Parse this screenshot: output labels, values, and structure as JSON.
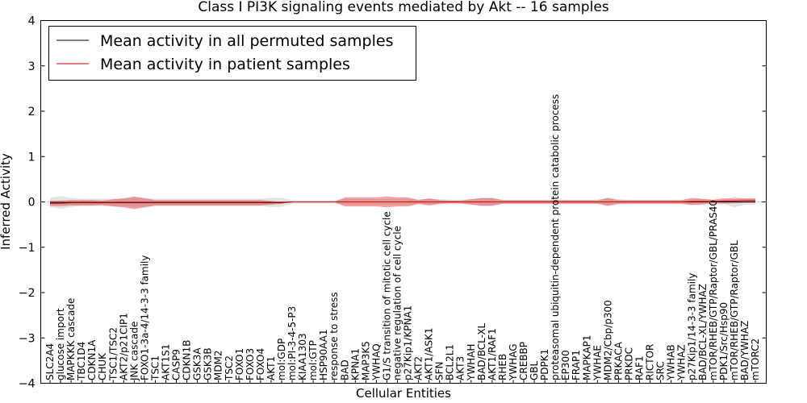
{
  "chart_data": {
    "type": "line",
    "title": "Class I PI3K signaling events mediated by Akt -- 16 samples",
    "xlabel": "Cellular Entities",
    "ylabel": "Inferred Activity",
    "ylim": [
      -4,
      4
    ],
    "yticks": [
      "4",
      "3",
      "2",
      "1",
      "0",
      "−1",
      "−2",
      "−3",
      "−4"
    ],
    "ytick_values": [
      4,
      3,
      2,
      1,
      0,
      -1,
      -2,
      -3,
      -4
    ],
    "legend": {
      "placement": "top-left",
      "entries": [
        {
          "label": "Mean activity in all permuted samples",
          "color": "#000000"
        },
        {
          "label": "Mean activity in patient samples",
          "color": "#cc0000"
        }
      ]
    },
    "categories": [
      "SLC2A4",
      "glucose import",
      "MAPKKK cascade",
      "TBC1D4",
      "CDKN1A",
      "CHUK",
      "TSC1/TSC2",
      "AKT2/p21CIP1",
      "JNK cascade",
      "FOXO1-3a-4/14-3-3 family",
      "TSC1",
      "AKT1S1",
      "CASP9",
      "CDKN1B",
      "GSK3A",
      "GSK3B",
      "MDM2",
      "TSC2",
      "FOXO1",
      "FOXO3",
      "FOXO4",
      "AKT1",
      "mol:GDP",
      "mol:PI-3-4-5-P3",
      "KIAA1303",
      "mol:GTP",
      "HSP90AA1",
      "response to stress",
      "BAD",
      "KPNA1",
      "MAP3K5",
      "YWHAQ",
      "G1/S transition of mitotic cell cycle",
      "negative regulation of cell cycle",
      "p27Kip1/KPNA1",
      "AKT2",
      "AKT1/ASK1",
      "SFN",
      "BCL2L1",
      "AKT3",
      "YWHAH",
      "BAD/BCL-XL",
      "AKT1/RAF1",
      "RHEB",
      "YWHAG",
      "CREBBP",
      "GBL",
      "PDPK1",
      "proteasomal ubiquitin-dependent protein catabolic process",
      "EP300",
      "FRAP1",
      "MAPKAP1",
      "YWHAE",
      "MDM2/Cbp/p300",
      "PRKACA",
      "PRKDC",
      "RAF1",
      "RICTOR",
      "SRC",
      "YWHAB",
      "YWHAZ",
      "p27Kip1/14-3-3 family",
      "BAD/BCL-XL/YWHAZ",
      "mTOR/RHEB/GTP/Raptor/GBL/PRAS40",
      "PDK1/Src/Hsp90",
      "mTOR/RHEB/GTP/Raptor/GBL",
      "BAD/YWHAZ",
      "mTORC2"
    ],
    "series": [
      {
        "name": "Mean activity in all permuted samples",
        "color": "#000000",
        "values": [
          -0.01,
          -0.01,
          -0.01,
          -0.01,
          -0.01,
          -0.01,
          -0.01,
          -0.01,
          -0.01,
          -0.01,
          -0.01,
          -0.01,
          -0.01,
          -0.01,
          -0.01,
          -0.01,
          -0.01,
          -0.01,
          -0.01,
          -0.01,
          -0.01,
          -0.01,
          -0.01,
          0.0,
          0.0,
          0.0,
          0.0,
          0.0,
          0.0,
          0.0,
          0.0,
          0.0,
          0.0,
          0.0,
          0.0,
          0.0,
          0.0,
          0.0,
          0.0,
          0.0,
          0.0,
          0.0,
          0.0,
          0.0,
          0.0,
          0.0,
          0.0,
          0.0,
          0.0,
          0.0,
          0.0,
          0.0,
          0.0,
          0.0,
          0.0,
          0.0,
          0.0,
          0.0,
          0.0,
          0.0,
          0.0,
          0.0,
          0.0,
          0.0,
          0.0,
          0.0,
          0.0,
          0.0
        ],
        "spread": [
          0.1,
          0.14,
          0.1,
          0.08,
          0.08,
          0.08,
          0.08,
          0.08,
          0.1,
          0.1,
          0.08,
          0.08,
          0.08,
          0.08,
          0.08,
          0.08,
          0.08,
          0.08,
          0.08,
          0.08,
          0.08,
          0.1,
          0.1,
          0.04,
          0.04,
          0.04,
          0.04,
          0.04,
          0.06,
          0.06,
          0.06,
          0.06,
          0.06,
          0.06,
          0.06,
          0.06,
          0.06,
          0.06,
          0.05,
          0.05,
          0.06,
          0.1,
          0.1,
          0.04,
          0.04,
          0.04,
          0.04,
          0.04,
          0.04,
          0.04,
          0.04,
          0.04,
          0.04,
          0.1,
          0.06,
          0.04,
          0.04,
          0.04,
          0.04,
          0.04,
          0.04,
          0.06,
          0.06,
          0.04,
          0.04,
          0.12,
          0.06,
          0.06
        ]
      },
      {
        "name": "Mean activity in patient samples",
        "color": "#cc0000",
        "values": [
          -0.03,
          -0.03,
          -0.02,
          -0.02,
          -0.02,
          -0.02,
          -0.02,
          -0.02,
          -0.02,
          -0.02,
          -0.02,
          -0.02,
          -0.02,
          -0.02,
          -0.02,
          -0.02,
          -0.02,
          -0.02,
          -0.02,
          -0.02,
          -0.02,
          -0.02,
          -0.02,
          0.0,
          0.0,
          0.0,
          0.0,
          0.0,
          0.0,
          0.0,
          0.0,
          0.0,
          0.0,
          0.0,
          0.0,
          0.0,
          0.0,
          0.0,
          0.0,
          0.0,
          0.0,
          0.0,
          0.0,
          0.0,
          0.0,
          0.0,
          0.0,
          0.0,
          0.0,
          0.0,
          0.0,
          0.0,
          0.0,
          0.0,
          0.0,
          0.0,
          0.0,
          0.0,
          0.0,
          0.0,
          0.0,
          0.01,
          0.01,
          0.01,
          0.02,
          0.02,
          0.03,
          0.03
        ],
        "spread": [
          0.06,
          0.06,
          0.06,
          0.06,
          0.06,
          0.05,
          0.08,
          0.1,
          0.14,
          0.1,
          0.06,
          0.06,
          0.06,
          0.06,
          0.06,
          0.06,
          0.06,
          0.06,
          0.06,
          0.06,
          0.06,
          0.04,
          0.02,
          0.0,
          0.0,
          0.0,
          0.0,
          0.0,
          0.1,
          0.1,
          0.1,
          0.1,
          0.12,
          0.1,
          0.1,
          0.04,
          0.08,
          0.04,
          0.03,
          0.03,
          0.06,
          0.08,
          0.08,
          0.04,
          0.04,
          0.04,
          0.04,
          0.04,
          0.04,
          0.04,
          0.04,
          0.04,
          0.04,
          0.08,
          0.04,
          0.04,
          0.04,
          0.04,
          0.04,
          0.04,
          0.04,
          0.08,
          0.06,
          0.04,
          0.06,
          0.05,
          0.05,
          0.05
        ]
      }
    ]
  }
}
